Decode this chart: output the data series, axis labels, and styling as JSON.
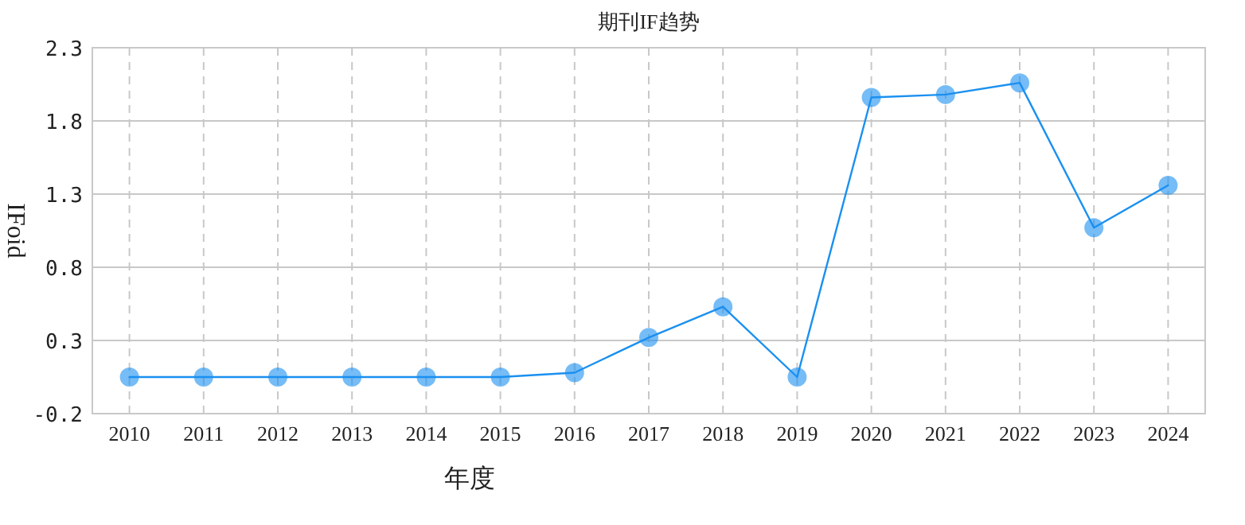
{
  "chart_data": {
    "type": "line",
    "title": "期刊IF趋势",
    "xlabel": "年度",
    "ylabel": "IFoid",
    "categories": [
      "2010",
      "2011",
      "2012",
      "2013",
      "2014",
      "2015",
      "2016",
      "2017",
      "2018",
      "2019",
      "2020",
      "2021",
      "2022",
      "2023",
      "2024"
    ],
    "series": [
      {
        "color": "#1a90f0",
        "values": [
          0.05,
          0.05,
          0.05,
          0.05,
          0.05,
          0.05,
          0.08,
          0.32,
          0.53,
          0.05,
          1.96,
          1.98,
          2.06,
          1.07,
          1.36
        ]
      }
    ],
    "ylim": [
      -0.2,
      2.3
    ],
    "yticks": [
      -0.2,
      0.3,
      0.8,
      1.3,
      1.8,
      2.3
    ],
    "grid": true,
    "marker": "circle",
    "line_style": "solid"
  }
}
